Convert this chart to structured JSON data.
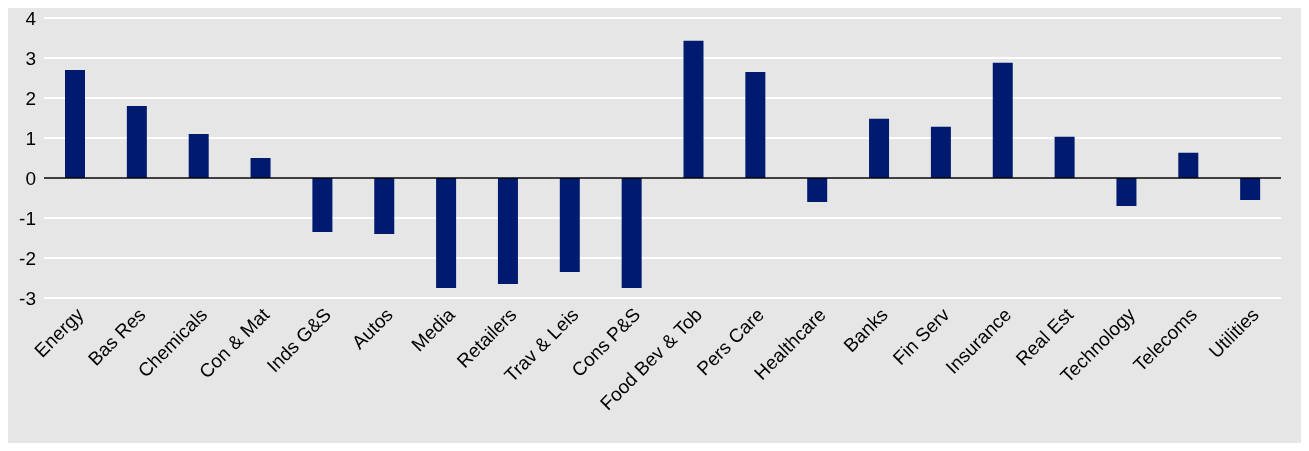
{
  "chart_data": {
    "type": "bar",
    "categories": [
      "Energy",
      "Bas Res",
      "Chemicals",
      "Con & Mat",
      "Inds G&S",
      "Autos",
      "Media",
      "Retailers",
      "Trav & Leis",
      "Cons P&S",
      "Food Bev & Tob",
      "Pers Care",
      "Healthcare",
      "Banks",
      "Fin Serv",
      "Insurance",
      "Real Est",
      "Technology",
      "Telecoms",
      "Utilities"
    ],
    "values": [
      2.7,
      1.8,
      1.1,
      0.5,
      -1.35,
      -1.4,
      -2.75,
      -2.65,
      -2.35,
      -2.75,
      3.43,
      2.65,
      -0.6,
      1.48,
      1.28,
      2.88,
      1.03,
      -0.7,
      0.63,
      -0.55
    ],
    "color": "#001a70",
    "ylim": [
      -3,
      4
    ],
    "yticks": [
      -3,
      -2,
      -1,
      0,
      1,
      2,
      3,
      4
    ],
    "grid": "y"
  }
}
